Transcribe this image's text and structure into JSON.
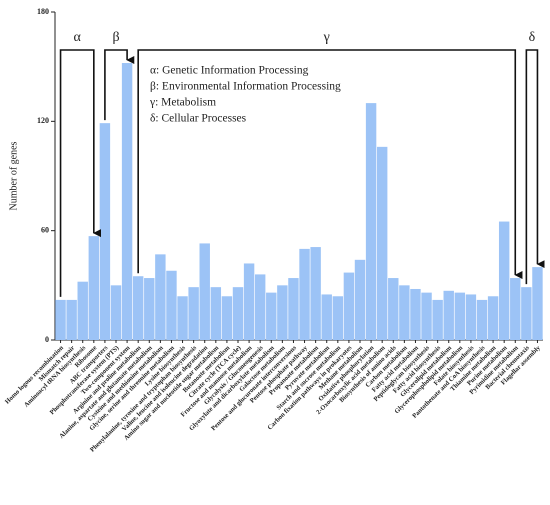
{
  "chart_data": {
    "type": "bar",
    "y_label": "Number of genes",
    "categories": [
      "Homo logous recombination",
      "Mismatch repair",
      "Aminoacyl tRNA biosynthesis",
      "Ribosome",
      "ABC transporters",
      "Phosphotransferase system (PTS)",
      "Two-component system",
      "Arginine and proline metabolism",
      "Alanine, aspartate and glutamate metabolism",
      "Cysteine and methionine metabolism",
      "Glycine, serine and threonine metabolism",
      "Lysine biosynthesis",
      "Phenylalanine, tyrosine and tryptophan biosynthesis",
      "Valine, leucine and isoleucine degradation",
      "Amino sugar and nucleotide sugar metabolism",
      "Butanoate metabolism",
      "Citrate cycle (TCA cycle)",
      "Fructose and mannose metabolism",
      "Glycolysis / Gluconeogenesis",
      "Glyoxylate and dicarboxylate metabolism",
      "Galactose metabolism",
      "Pentose and glucuronate interconversions",
      "Pentose phosphate pathway",
      "Propanoate metabolism",
      "Pyruvate metabolism",
      "Starch and sucrose metabolism",
      "Carbon fixation pathways in prokaryotes",
      "Methane metabolism",
      "Oxidative phosphorylation",
      "2-Oxocarboxylic acid metabolism",
      "Biosynthesis of amino acids",
      "Carbon metabolism",
      "Fatty acid metabolism",
      "Peptidoglycan biosynthesis",
      "Fatty acid biosynthesis",
      "Glycerolipid metabolism",
      "Glycerophospholipid metabolism",
      "Folate biosynthesis",
      "Pantothenate and CoA biosynthesis",
      "Thiamine metabolism",
      "Purine metabolism",
      "Pyrimidine metabolism",
      "Bacterial chemotaxis",
      "Flagellar assembly"
    ],
    "values": [
      22,
      22,
      32,
      57,
      119,
      30,
      152,
      35,
      34,
      47,
      38,
      24,
      29,
      53,
      29,
      24,
      29,
      42,
      36,
      26,
      30,
      34,
      50,
      51,
      25,
      24,
      37,
      44,
      130,
      106,
      34,
      30,
      28,
      26,
      22,
      27,
      26,
      25,
      22,
      24,
      65,
      34,
      29,
      40
    ],
    "color": "#9cc3f6",
    "ylim": [
      0,
      180
    ],
    "yticks": [
      0,
      60,
      120,
      180
    ],
    "grid": false,
    "annotations": {
      "groups": [
        "α",
        "β",
        "γ",
        "δ"
      ],
      "legend": [
        "α: Genetic Information Processing",
        "β: Environmental Information Processing",
        "γ: Metabolism",
        "δ: Cellular Processes"
      ]
    }
  }
}
